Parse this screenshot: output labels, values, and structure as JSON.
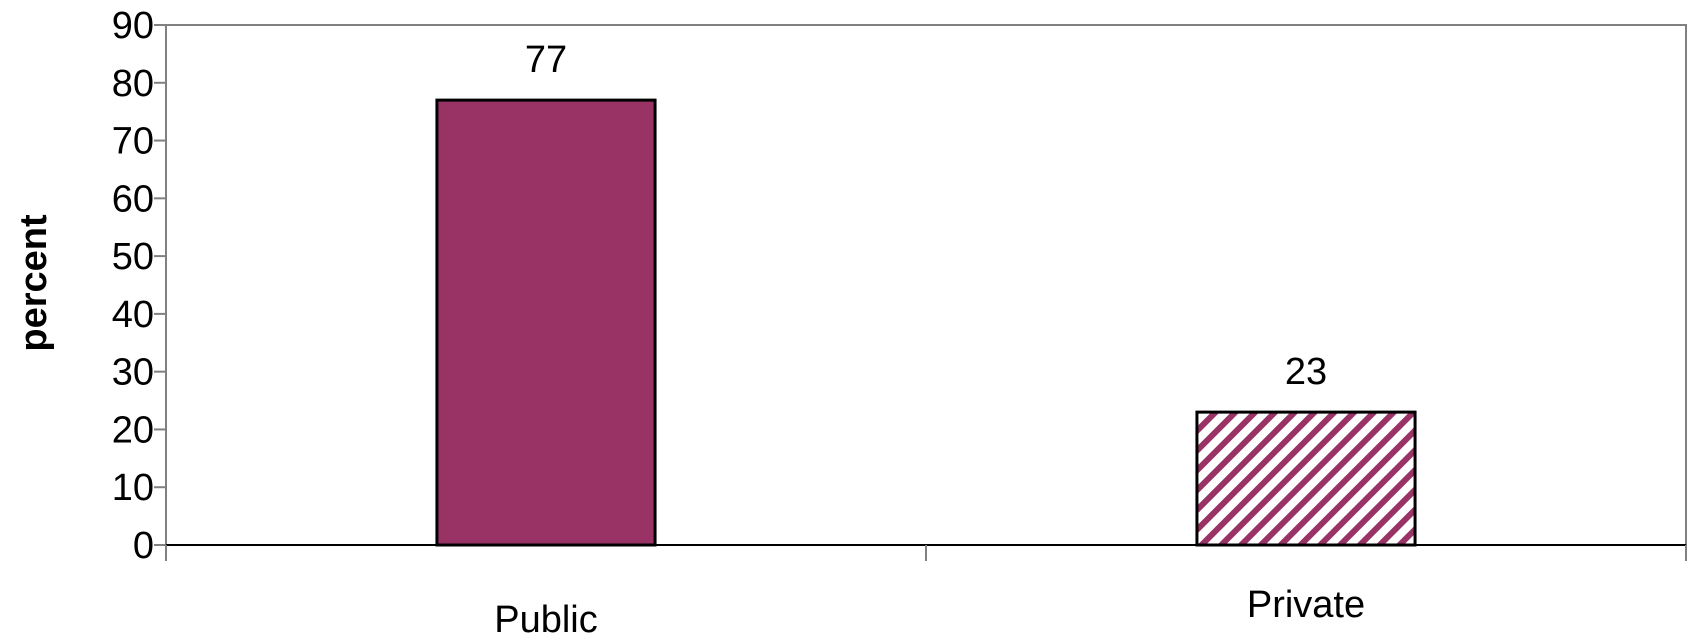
{
  "chart_data": {
    "type": "bar",
    "categories": [
      "Public",
      "Private"
    ],
    "values": [
      77,
      23
    ],
    "data_labels": [
      "77",
      "23"
    ],
    "title": "",
    "xlabel": "",
    "ylabel": "percent",
    "ylim": [
      0,
      90
    ],
    "yticks": [
      0,
      10,
      20,
      30,
      40,
      50,
      60,
      70,
      80,
      90
    ],
    "ytick_labels": [
      "0",
      "10",
      "20",
      "30",
      "40",
      "50",
      "60",
      "70",
      "80",
      "90"
    ],
    "grid": false,
    "legend": "none",
    "bar_styles": [
      "solid",
      "diagonal-hatch"
    ],
    "colors": {
      "bar": "#993366",
      "axis": "#808080",
      "bar_outline": "#000000"
    }
  }
}
